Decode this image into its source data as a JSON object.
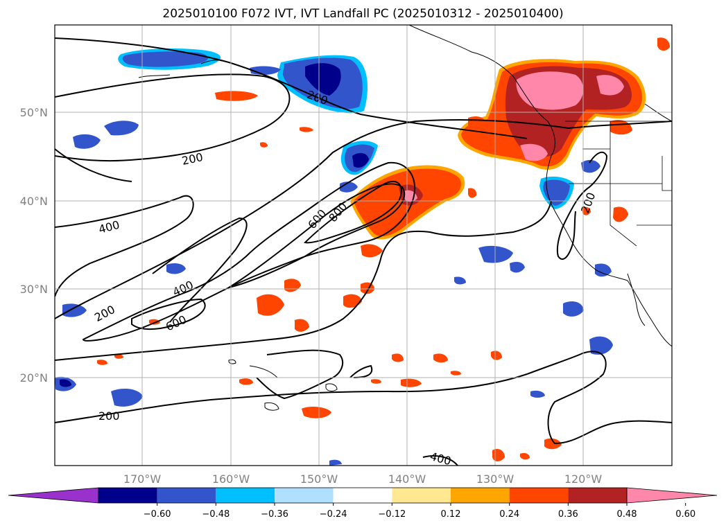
{
  "title": "2025010100 F072 IVT, IVT Landfall PC (2025010312 - 2025010400)",
  "lat_labels": [
    "50°N",
    "40°N",
    "30°N",
    "20°N"
  ],
  "lon_labels": [
    "170°W",
    "160°W",
    "150°W",
    "140°W",
    "130°W",
    "120°W"
  ],
  "contour_labels": [
    "200",
    "200",
    "200",
    "200",
    "200",
    "400",
    "400",
    "400",
    "600",
    "600",
    "800"
  ],
  "colorbar": {
    "ticks": [
      "−0.60",
      "−0.48",
      "−0.36",
      "−0.24",
      "−0.12",
      "0.12",
      "0.24",
      "0.36",
      "0.48",
      "0.60"
    ],
    "colors": [
      "#9932CC",
      "#00008B",
      "#3355CC",
      "#00BFFF",
      "#B0E0FF",
      "#FFFFFF",
      "#FFE890",
      "#FFA500",
      "#FF4500",
      "#B22222",
      "#FF88AA"
    ]
  },
  "colors": {
    "positive_low": "#FFE890",
    "positive_mid": "#FF4500",
    "positive_high": "#B22222",
    "positive_max": "#FF88AA",
    "negative_low": "#00BFFF",
    "negative_mid": "#3355CC",
    "negative_high": "#00008B"
  }
}
